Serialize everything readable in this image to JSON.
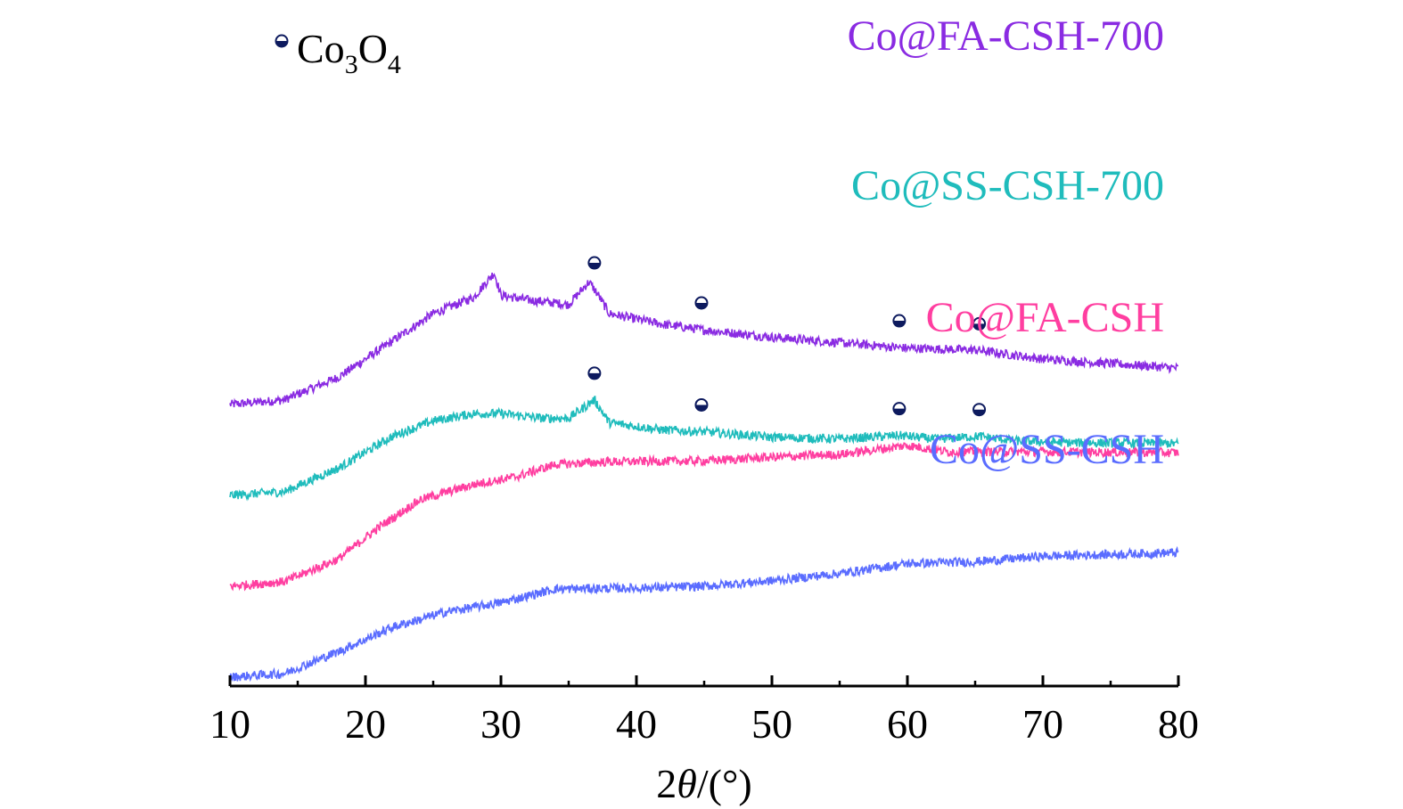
{
  "chart_data": {
    "type": "line",
    "xlabel_prefix": "2",
    "xlabel_symbol": "θ",
    "xlabel_suffix": "/(°)",
    "xlim": [
      10,
      80
    ],
    "x_ticks": [
      10,
      20,
      30,
      40,
      50,
      60,
      70,
      80
    ],
    "y_axis_shown": false,
    "grid": false,
    "legend": {
      "marker": "half-filled-circle",
      "label_main": "Co",
      "label_sub1": "3",
      "label_mid": "O",
      "label_sub2": "4",
      "placement": "top-left"
    },
    "series": [
      {
        "name": "Co@FA-CSH-700",
        "color": "#8a2be2",
        "offset": 3.0,
        "profile": [
          [
            10,
            0.0
          ],
          [
            14,
            0.05
          ],
          [
            18,
            0.3
          ],
          [
            22,
            0.7
          ],
          [
            25,
            1.0
          ],
          [
            28,
            1.18
          ],
          [
            29.5,
            1.45
          ],
          [
            30,
            1.2
          ],
          [
            32,
            1.15
          ],
          [
            35,
            1.1
          ],
          [
            36.5,
            1.35
          ],
          [
            37.2,
            1.2
          ],
          [
            38,
            1.0
          ],
          [
            42,
            0.88
          ],
          [
            45,
            0.82
          ],
          [
            50,
            0.74
          ],
          [
            55,
            0.68
          ],
          [
            60,
            0.62
          ],
          [
            65,
            0.6
          ],
          [
            70,
            0.5
          ],
          [
            75,
            0.45
          ],
          [
            80,
            0.4
          ]
        ],
        "peak_markers_2theta": [
          36.9,
          44.8,
          59.4,
          65.3
        ],
        "noise": 0.05
      },
      {
        "name": "Co@SS-CSH-700",
        "color": "#1fbcbc",
        "offset": 2.0,
        "profile": [
          [
            10,
            0.0
          ],
          [
            14,
            0.04
          ],
          [
            18,
            0.3
          ],
          [
            22,
            0.65
          ],
          [
            25,
            0.82
          ],
          [
            28,
            0.9
          ],
          [
            30,
            0.9
          ],
          [
            33,
            0.85
          ],
          [
            35,
            0.85
          ],
          [
            36.9,
            1.05
          ],
          [
            38,
            0.8
          ],
          [
            42,
            0.72
          ],
          [
            45,
            0.7
          ],
          [
            50,
            0.64
          ],
          [
            55,
            0.62
          ],
          [
            59.4,
            0.66
          ],
          [
            62,
            0.62
          ],
          [
            65.3,
            0.65
          ],
          [
            68,
            0.6
          ],
          [
            72,
            0.58
          ],
          [
            80,
            0.57
          ]
        ],
        "peak_markers_2theta": [
          36.9,
          44.8,
          59.4,
          65.3
        ],
        "noise": 0.05
      },
      {
        "name": "Co@FA-CSH",
        "color": "#ff3ea0",
        "offset": 1.0,
        "profile": [
          [
            10,
            0.0
          ],
          [
            14,
            0.05
          ],
          [
            18,
            0.3
          ],
          [
            21,
            0.65
          ],
          [
            24,
            0.95
          ],
          [
            28,
            1.12
          ],
          [
            31,
            1.2
          ],
          [
            34,
            1.34
          ],
          [
            38,
            1.37
          ],
          [
            45,
            1.38
          ],
          [
            50,
            1.42
          ],
          [
            55,
            1.45
          ],
          [
            60,
            1.55
          ],
          [
            63,
            1.48
          ],
          [
            70,
            1.48
          ],
          [
            80,
            1.47
          ]
        ],
        "peak_markers_2theta": [],
        "noise": 0.05
      },
      {
        "name": "Co@SS-CSH",
        "color": "#5a6cff",
        "offset": 0.0,
        "profile": [
          [
            10,
            0.0
          ],
          [
            14,
            0.04
          ],
          [
            18,
            0.28
          ],
          [
            22,
            0.55
          ],
          [
            26,
            0.72
          ],
          [
            30,
            0.82
          ],
          [
            34,
            0.97
          ],
          [
            40,
            0.98
          ],
          [
            45,
            1.0
          ],
          [
            50,
            1.06
          ],
          [
            55,
            1.14
          ],
          [
            60,
            1.25
          ],
          [
            65,
            1.27
          ],
          [
            70,
            1.33
          ],
          [
            75,
            1.35
          ],
          [
            80,
            1.37
          ]
        ],
        "peak_markers_2theta": [],
        "noise": 0.05
      }
    ]
  }
}
